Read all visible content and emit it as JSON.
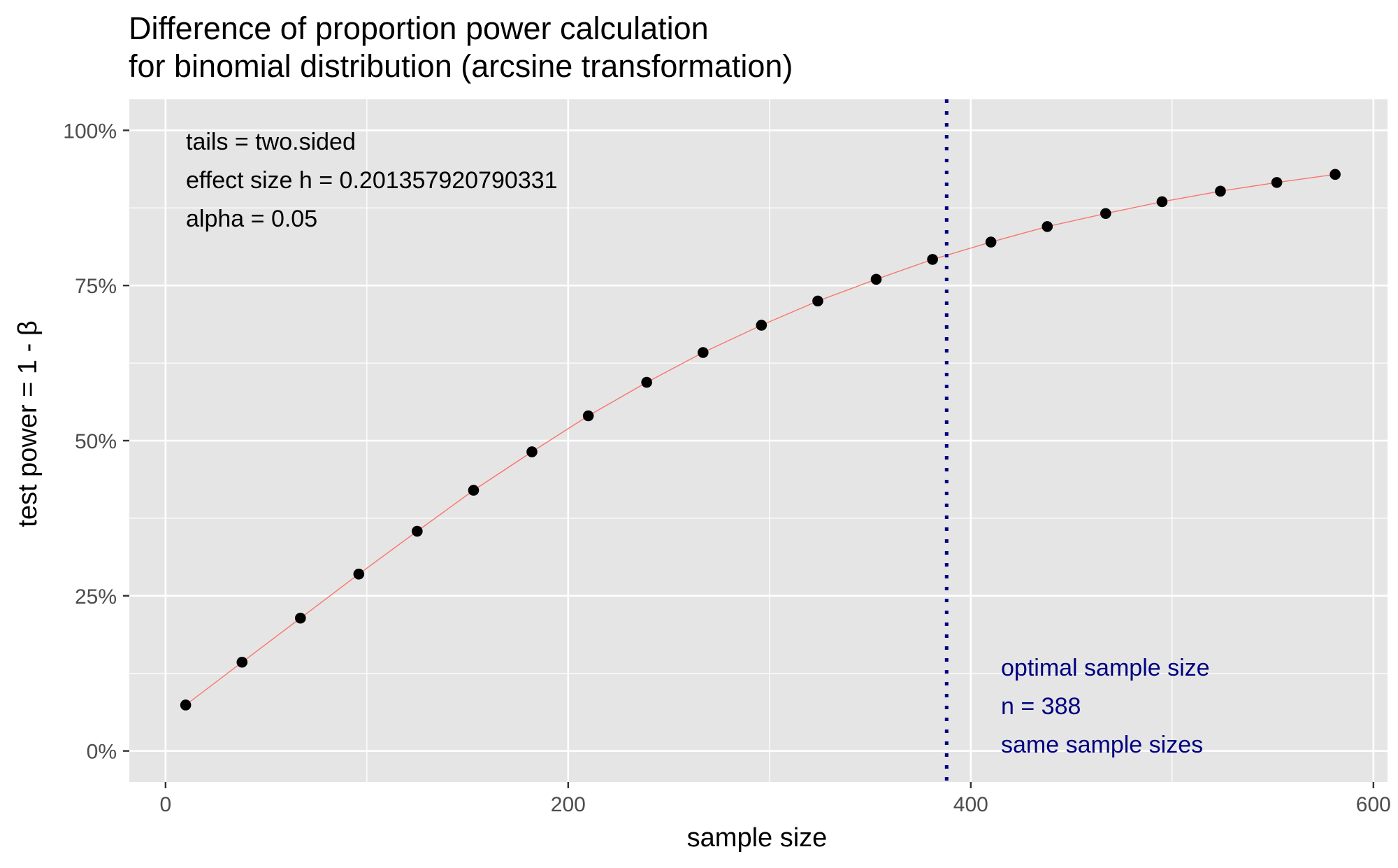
{
  "chart_data": {
    "type": "line",
    "title": "Difference of proportion power calculation",
    "subtitle": "for binomial distribution (arcsine transformation)",
    "xlabel": "sample size",
    "ylabel": "test power = 1 - β",
    "xlim": [
      -18,
      607
    ],
    "ylim": [
      -0.05,
      1.05
    ],
    "x_ticks": [
      0,
      200,
      400,
      600
    ],
    "x_tick_labels": [
      "0",
      "200",
      "400",
      "600"
    ],
    "y_ticks": [
      0,
      0.25,
      0.5,
      0.75,
      1.0
    ],
    "y_tick_labels": [
      "0%",
      "25%",
      "50%",
      "75%",
      "100%"
    ],
    "grid": true,
    "series": [
      {
        "x": [
          10,
          38,
          67,
          96,
          125,
          153,
          182,
          210,
          239,
          267,
          296,
          324,
          353,
          381,
          410,
          438,
          467,
          495,
          524,
          552,
          581
        ],
        "y": [
          0.074,
          0.143,
          0.214,
          0.285,
          0.354,
          0.42,
          0.482,
          0.54,
          0.594,
          0.642,
          0.686,
          0.725,
          0.76,
          0.792,
          0.82,
          0.845,
          0.866,
          0.885,
          0.902,
          0.916,
          0.929
        ],
        "line_color": "#f8766d",
        "point_color": "#000000"
      }
    ],
    "vline": {
      "x": 388,
      "color": "#000080",
      "style": "dotted"
    },
    "annotations_left": [
      "tails = two.sided",
      "effect size h = 0.201357920790331",
      "alpha = 0.05"
    ],
    "annotations_right": [
      "optimal sample size",
      "n = 388",
      "same sample sizes"
    ],
    "colors": {
      "panel": "#e5e5e5",
      "grid": "#ffffff",
      "line": "#f8766d",
      "points": "#000000",
      "vline": "#000080"
    }
  }
}
